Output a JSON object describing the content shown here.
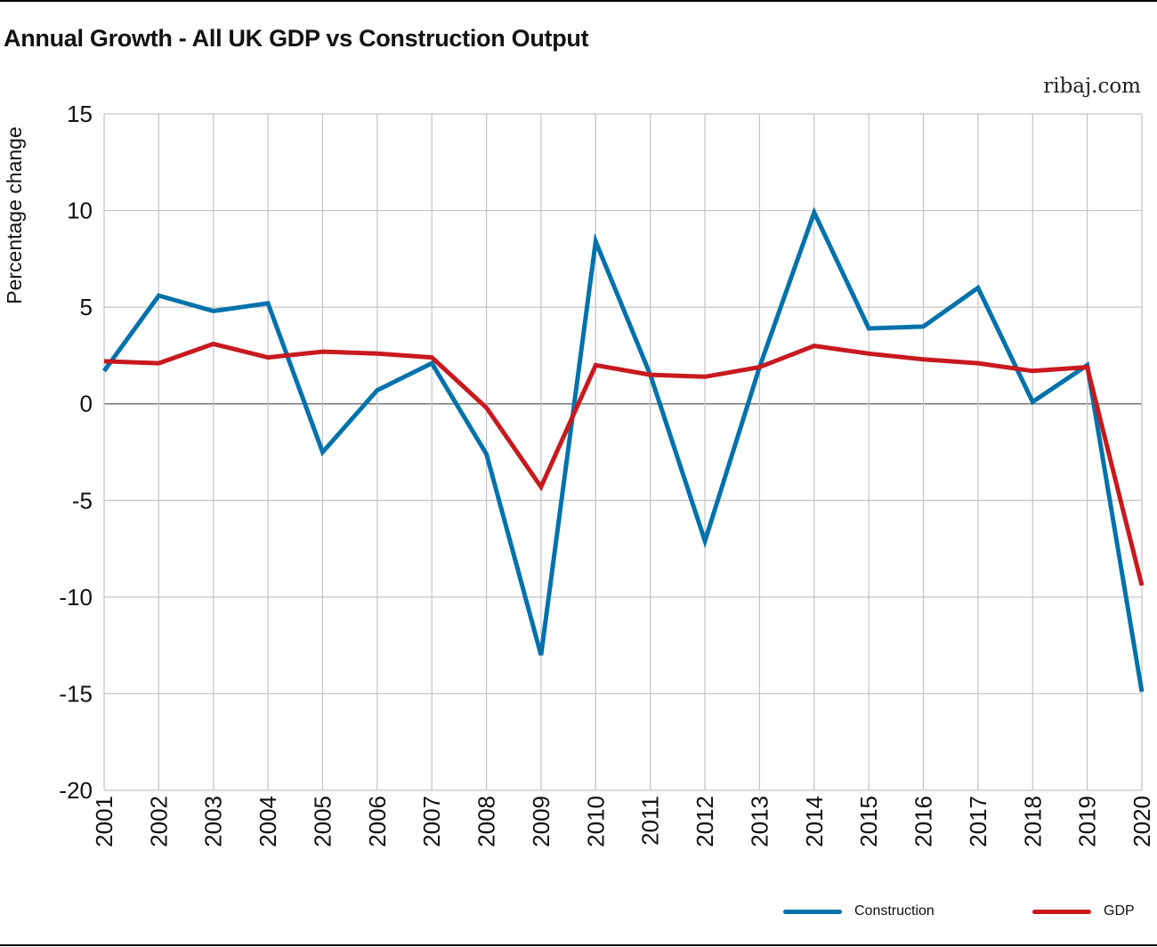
{
  "title": "Annual Growth - All UK GDP vs Construction Output",
  "source": "ribaj.com",
  "chart_data": {
    "type": "line",
    "title": "Annual Growth - All UK GDP vs Construction Output",
    "xlabel": "",
    "ylabel": "Percentage change",
    "ylim": [
      -20,
      15
    ],
    "yticks": [
      15,
      10,
      5,
      0,
      -5,
      -10,
      -15,
      -20
    ],
    "ytick_labels": [
      "15",
      "10",
      "5",
      "0",
      "-5",
      "-10",
      "-15",
      "-20"
    ],
    "categories": [
      "2001",
      "2002",
      "2003",
      "2004",
      "2005",
      "2006",
      "2007",
      "2008",
      "2009",
      "2010",
      "2011",
      "2012",
      "2013",
      "2014",
      "2015",
      "2016",
      "2017",
      "2018",
      "2019",
      "2020"
    ],
    "grid": true,
    "legend_position": "bottom-right",
    "series": [
      {
        "name": "Construction",
        "color": "#0072ab",
        "values": [
          1.7,
          5.6,
          4.8,
          5.2,
          -2.5,
          0.7,
          2.1,
          -2.6,
          -13.0,
          8.4,
          1.5,
          -7.1,
          1.9,
          9.9,
          3.9,
          4.0,
          6.0,
          0.1,
          2.0,
          -14.9
        ]
      },
      {
        "name": "GDP",
        "color": "#c8191f",
        "values": [
          2.2,
          2.1,
          3.1,
          2.4,
          2.7,
          2.6,
          2.4,
          -0.2,
          -4.3,
          2.0,
          1.5,
          1.4,
          1.9,
          3.0,
          2.6,
          2.3,
          2.1,
          1.7,
          1.9,
          -9.4
        ]
      }
    ]
  }
}
